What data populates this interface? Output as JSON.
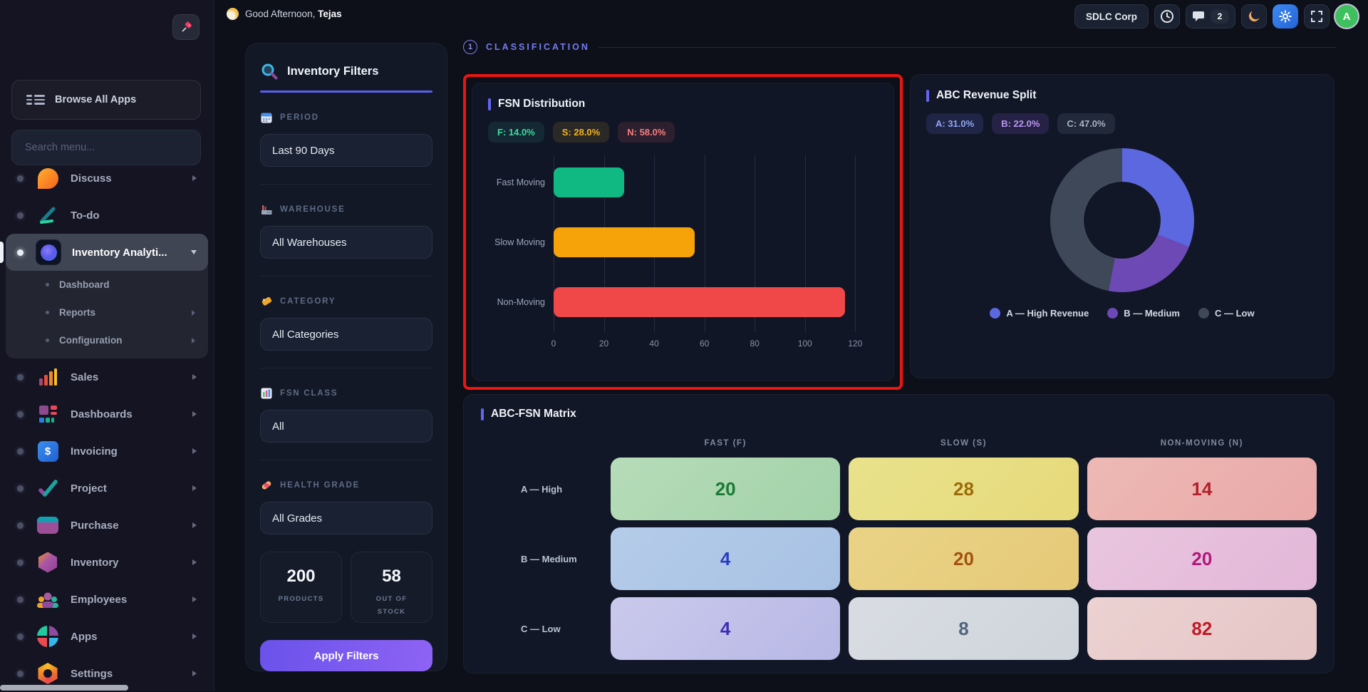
{
  "topbar": {
    "greeting_prefix": "Good Afternoon,",
    "greeting_name": "Tejas",
    "company_button": "SDLC Corp",
    "chat_badge_count": "2",
    "avatar_initial": "A"
  },
  "sidebar": {
    "browse_all_apps_label": "Browse All Apps",
    "search_placeholder": "Search menu...",
    "items": [
      {
        "label": "Discuss"
      },
      {
        "label": "To-do"
      },
      {
        "label": "Inventory Analyti...",
        "active": true,
        "children": [
          {
            "label": "Dashboard"
          },
          {
            "label": "Reports"
          },
          {
            "label": "Configuration"
          }
        ]
      },
      {
        "label": "Sales"
      },
      {
        "label": "Dashboards"
      },
      {
        "label": "Invoicing"
      },
      {
        "label": "Project"
      },
      {
        "label": "Purchase"
      },
      {
        "label": "Inventory"
      },
      {
        "label": "Employees"
      },
      {
        "label": "Apps"
      },
      {
        "label": "Settings"
      }
    ]
  },
  "filters": {
    "title": "Inventory Filters",
    "sections": [
      {
        "label": "PERIOD",
        "icon": "calendar-icon",
        "value": "Last 90 Days"
      },
      {
        "label": "WAREHOUSE",
        "icon": "factory-icon",
        "value": "All Warehouses"
      },
      {
        "label": "CATEGORY",
        "icon": "tag-icon",
        "value": "All Categories"
      },
      {
        "label": "FSN CLASS",
        "icon": "bar-chart-icon",
        "value": "All"
      },
      {
        "label": "HEALTH GRADE",
        "icon": "pill-icon",
        "value": "All Grades"
      }
    ],
    "stats": [
      {
        "value": "200",
        "label": "PRODUCTS"
      },
      {
        "value": "58",
        "label": "OUT OF STOCK"
      }
    ],
    "apply_button": "Apply Filters"
  },
  "classification": {
    "number": "1",
    "label": "CLASSIFICATION"
  },
  "fsn_panel": {
    "title": "FSN Distribution",
    "badges": [
      {
        "label": "F: 14.0%",
        "fg": "#3ddb9e",
        "bg": "rgba(45,212,160,0.10)"
      },
      {
        "label": "S: 28.0%",
        "fg": "#f2b522",
        "bg": "rgba(242,181,34,0.12)"
      },
      {
        "label": "N: 58.0%",
        "fg": "#f77e7e",
        "bg": "rgba(247,110,110,0.12)"
      }
    ]
  },
  "abc_panel": {
    "title": "ABC Revenue Split",
    "badges": [
      {
        "label": "A: 31.0%",
        "fg": "#93a5f7",
        "bg": "rgba(99,120,240,0.15)"
      },
      {
        "label": "B: 22.0%",
        "fg": "#bb97f2",
        "bg": "rgba(150,100,240,0.15)"
      },
      {
        "label": "C: 47.0%",
        "fg": "#a7b3c4",
        "bg": "rgba(160,175,195,0.12)"
      }
    ],
    "legend": [
      {
        "label": "A — High Revenue",
        "color": "#5b68e0"
      },
      {
        "label": "B — Medium",
        "color": "#6d49b6"
      },
      {
        "label": "C — Low",
        "color": "#3e4859"
      }
    ]
  },
  "matrix_panel": {
    "title": "ABC-FSN Matrix",
    "columns": [
      "FAST (F)",
      "SLOW (S)",
      "NON-MOVING (N)"
    ],
    "rows": [
      {
        "label": "A — High",
        "values": [
          "20",
          "28",
          "14"
        ],
        "cells": [
          {
            "bg1": "#b6dcb8",
            "bg2": "#a3d2a9",
            "fg": "#1b7a36"
          },
          {
            "bg1": "#e9e28c",
            "bg2": "#e6d97a",
            "fg": "#9b6b08"
          },
          {
            "bg1": "#edb9b4",
            "bg2": "#e9a9a8",
            "fg": "#b3202c"
          }
        ]
      },
      {
        "label": "B — Medium",
        "values": [
          "4",
          "20",
          "20"
        ],
        "cells": [
          {
            "bg1": "#b5cce9",
            "bg2": "#a8c2e4",
            "fg": "#2b3dbd"
          },
          {
            "bg1": "#ead386",
            "bg2": "#e5c978",
            "fg": "#a2520e"
          },
          {
            "bg1": "#e9c6df",
            "bg2": "#e3b7d8",
            "fg": "#b2187c"
          }
        ]
      },
      {
        "label": "C — Low",
        "values": [
          "4",
          "8",
          "82"
        ],
        "cells": [
          {
            "bg1": "#cac9ec",
            "bg2": "#b8b8e6",
            "fg": "#3d2eb4"
          },
          {
            "bg1": "#d9dde3",
            "bg2": "#cfd4db",
            "fg": "#50657c"
          },
          {
            "bg1": "#ecd2d2",
            "bg2": "#e5c5c6",
            "fg": "#bf1a28"
          }
        ]
      }
    ]
  },
  "chart_data": [
    {
      "type": "bar",
      "orientation": "horizontal",
      "title": "FSN Distribution",
      "categories": [
        "Fast Moving",
        "Slow Moving",
        "Non-Moving"
      ],
      "values": [
        28,
        56,
        116
      ],
      "colors": [
        "#10b981",
        "#f5a309",
        "#f04848"
      ],
      "xlim": [
        0,
        120
      ],
      "ticks": [
        0,
        20,
        40,
        60,
        80,
        100,
        120
      ],
      "grid": true,
      "legend_position": "none"
    },
    {
      "type": "pie",
      "subtype": "donut",
      "title": "ABC Revenue Split",
      "labels": [
        "A — High Revenue",
        "B — Medium",
        "C — Low"
      ],
      "values": [
        31,
        22,
        47
      ],
      "colors": [
        "#5b68e0",
        "#6d49b6",
        "#3e4859"
      ],
      "legend_position": "bottom"
    },
    {
      "type": "table",
      "title": "ABC-FSN Matrix",
      "columns": [
        "FAST (F)",
        "SLOW (S)",
        "NON-MOVING (N)"
      ],
      "row_labels": [
        "A — High",
        "B — Medium",
        "C — Low"
      ],
      "values": [
        [
          20,
          28,
          14
        ],
        [
          4,
          20,
          20
        ],
        [
          4,
          8,
          82
        ]
      ]
    }
  ]
}
